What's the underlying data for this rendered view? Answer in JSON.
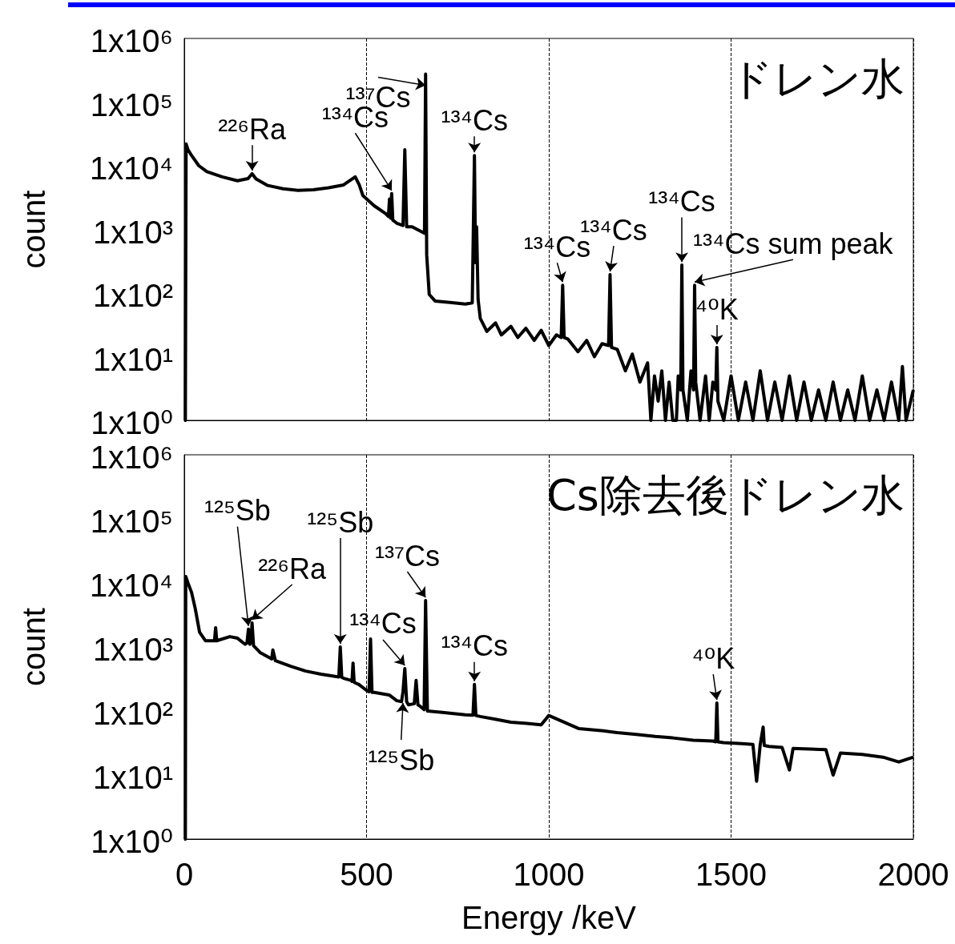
{
  "chart_data": [
    {
      "type": "line",
      "title": "ドレン水",
      "ylabel": "count",
      "log": "y",
      "grid": "x",
      "tick_labels": "y",
      "color": "#000000",
      "xlim": [
        0,
        2000
      ],
      "xticks": [
        0,
        500,
        1000,
        1500,
        2000
      ],
      "ylim": [
        1,
        1000000
      ],
      "yticks": [
        {
          "value": 1,
          "label": "1x10⁰"
        },
        {
          "value": 10,
          "label": "1x10¹"
        },
        {
          "value": 100,
          "label": "1x10²"
        },
        {
          "value": 1000,
          "label": "1x10³"
        },
        {
          "value": 10000,
          "label": "1x10⁴"
        },
        {
          "value": 100000,
          "label": "1x10⁵"
        },
        {
          "value": 1000000,
          "label": "1x10⁶"
        }
      ],
      "x": [
        0,
        3,
        5,
        10,
        20,
        40,
        62,
        104,
        146,
        175,
        186,
        197,
        229,
        271,
        312,
        354,
        396,
        437,
        469,
        480,
        490,
        521,
        552,
        560,
        563,
        566,
        569,
        572,
        583,
        600,
        605,
        610,
        625,
        646,
        659,
        662,
        665,
        672,
        688,
        729,
        771,
        790,
        796,
        799,
        802,
        806,
        812,
        830,
        854,
        870,
        896,
        915,
        937,
        960,
        979,
        1000,
        1021,
        1034,
        1038,
        1042,
        1052,
        1080,
        1104,
        1125,
        1146,
        1164,
        1168,
        1172,
        1188,
        1210,
        1229,
        1250,
        1271,
        1280,
        1290,
        1300,
        1310,
        1320,
        1330,
        1340,
        1350,
        1355,
        1362,
        1365,
        1368,
        1380,
        1390,
        1397,
        1400,
        1403,
        1415,
        1430,
        1440,
        1450,
        1458,
        1461,
        1464,
        1480,
        1500,
        1520,
        1540,
        1560,
        1580,
        1600,
        1620,
        1640,
        1660,
        1680,
        1700,
        1720,
        1740,
        1760,
        1780,
        1800,
        1820,
        1840,
        1860,
        1880,
        1900,
        1920,
        1940,
        1960,
        1970,
        1980,
        2000
      ],
      "values": [
        1,
        1,
        22000,
        18000,
        14500,
        10000,
        8100,
        6700,
        5800,
        6300,
        7500,
        6200,
        4900,
        4350,
        4100,
        4200,
        4500,
        5000,
        6700,
        5000,
        3400,
        2350,
        1780,
        1600,
        3000,
        1500,
        3650,
        1400,
        1250,
        1150,
        17800,
        1100,
        1100,
        950,
        870,
        275000,
        400,
        95,
        75,
        71,
        67,
        70,
        14500,
        300,
        1100,
        80,
        40,
        25,
        34,
        22,
        30,
        20,
        28,
        18,
        26,
        15,
        22,
        20,
        133,
        20,
        19,
        12,
        18,
        10,
        16,
        15,
        195,
        14,
        13,
        6,
        11,
        4,
        8,
        1,
        5,
        2,
        6,
        1,
        4,
        1,
        1,
        5,
        3,
        275,
        3,
        1,
        6,
        3,
        133,
        4,
        1,
        5,
        1,
        4,
        3,
        14,
        2,
        1,
        5,
        1,
        4,
        1,
        6,
        1,
        4,
        1,
        5,
        1,
        4,
        1,
        3,
        1,
        4,
        1,
        3,
        1,
        5,
        1,
        3,
        1,
        4,
        1,
        7,
        1,
        3
      ],
      "annotations": [
        {
          "text": "²²⁶Ra",
          "x": 186,
          "y": 7500
        },
        {
          "text": "¹³⁴Cs",
          "x": 569,
          "y": 3650
        },
        {
          "text": "¹³⁷Cs",
          "x": 662,
          "y": 275000
        },
        {
          "text": "¹³⁴Cs",
          "x": 796,
          "y": 14500
        },
        {
          "text": "¹³⁴Cs",
          "x": 1038,
          "y": 133
        },
        {
          "text": "¹³⁴Cs",
          "x": 1168,
          "y": 195
        },
        {
          "text": "¹³⁴Cs",
          "x": 1365,
          "y": 275
        },
        {
          "text": "¹³⁴Cs sum peak",
          "x": 1400,
          "y": 133
        },
        {
          "text": "⁴⁰K",
          "x": 1461,
          "y": 14
        }
      ]
    },
    {
      "type": "line",
      "title": "Cs除去後ドレン水",
      "xlabel": "Energy /keV",
      "ylabel": "count",
      "log": "y",
      "grid": "x",
      "color": "#000000",
      "xlim": [
        0,
        2000
      ],
      "xticks": [
        0,
        500,
        1000,
        1500,
        2000
      ],
      "ylim": [
        1,
        1000000
      ],
      "yticks": [
        {
          "value": 1,
          "label": "1x10⁰"
        },
        {
          "value": 10,
          "label": "1x10¹"
        },
        {
          "value": 100,
          "label": "1x10²"
        },
        {
          "value": 1000,
          "label": "1x10³"
        },
        {
          "value": 10000,
          "label": "1x10⁴"
        },
        {
          "value": 100000,
          "label": "1x10⁵"
        },
        {
          "value": 1000000,
          "label": "1x10⁶"
        }
      ],
      "x": [
        0,
        3,
        4,
        10,
        20,
        30,
        42,
        58,
        83,
        86,
        89,
        125,
        146,
        167,
        172,
        176,
        180,
        183,
        186,
        190,
        208,
        240,
        243,
        250,
        292,
        333,
        375,
        417,
        424,
        428,
        432,
        437,
        458,
        460,
        463,
        466,
        479,
        500,
        507,
        511,
        515,
        521,
        562,
        583,
        596,
        600,
        605,
        610,
        615,
        631,
        636,
        641,
        646,
        658,
        662,
        666,
        667,
        708,
        771,
        792,
        796,
        800,
        812,
        850,
        896,
        940,
        979,
        1000,
        1083,
        1150,
        1188,
        1240,
        1292,
        1340,
        1396,
        1450,
        1458,
        1461,
        1464,
        1479,
        1530,
        1560,
        1570,
        1580,
        1588,
        1591,
        1604,
        1640,
        1660,
        1670,
        1760,
        1780,
        1800,
        1860,
        1917,
        1960,
        2000
      ],
      "values": [
        1,
        1,
        12600,
        10000,
        7100,
        4000,
        1700,
        1250,
        1250,
        2000,
        1250,
        1450,
        1370,
        1100,
        1150,
        1900,
        1100,
        1200,
        2370,
        1050,
        820,
        650,
        900,
        610,
        500,
        420,
        375,
        345,
        340,
        1000,
        335,
        325,
        300,
        290,
        560,
        280,
        260,
        210,
        200,
        1330,
        195,
        195,
        178,
        145,
        140,
        200,
        460,
        140,
        125,
        130,
        300,
        125,
        120,
        105,
        5300,
        200,
        100,
        95,
        87,
        86,
        260,
        85,
        82,
        75,
        67,
        64,
        61,
        85,
        53,
        49,
        46,
        43,
        40,
        38,
        35,
        34,
        33,
        133,
        33,
        32,
        31,
        30,
        8,
        30,
        56,
        29,
        28,
        27,
        12,
        26,
        25,
        10,
        22,
        21,
        19,
        16,
        19
      ],
      "annotations": [
        {
          "text": "¹²⁵Sb",
          "x": 176,
          "y": 1900
        },
        {
          "text": "²²⁶Ra",
          "x": 186,
          "y": 2370
        },
        {
          "text": "¹²⁵Sb",
          "x": 428,
          "y": 1000
        },
        {
          "text": "¹³⁷Cs",
          "x": 662,
          "y": 5300
        },
        {
          "text": "¹³⁴Cs",
          "x": 605,
          "y": 460
        },
        {
          "text": "¹²⁵Sb",
          "x": 600,
          "y": 200
        },
        {
          "text": "¹³⁴Cs",
          "x": 796,
          "y": 260
        },
        {
          "text": "⁴⁰K",
          "x": 1461,
          "y": 133
        }
      ]
    }
  ]
}
